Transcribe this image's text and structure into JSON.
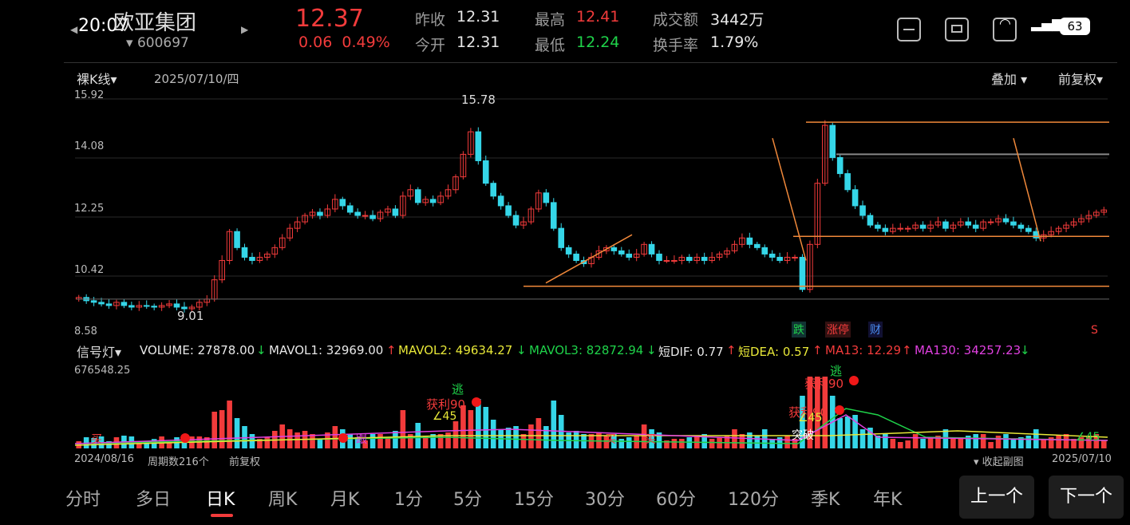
{
  "status": {
    "time": "20:07",
    "battery": "63"
  },
  "header": {
    "name": "欧亚集团",
    "code": "600697",
    "price": "12.37",
    "change": "0.06",
    "change_pct": "0.49%",
    "prev_close_label": "昨收",
    "prev_close": "12.31",
    "open_label": "今开",
    "open": "12.31",
    "high_label": "最高",
    "high": "12.41",
    "low_label": "最低",
    "low": "12.24",
    "amount_label": "成交额",
    "amount": "3442万",
    "turnover_label": "换手率",
    "turnover": "1.79%"
  },
  "header_icons": [
    "minimize-icon",
    "screen-icon",
    "edit-icon",
    "wifi-icon",
    "signal-icon"
  ],
  "chart": {
    "kline_dropdown": "裸K线",
    "date": "2025/07/10/四",
    "overlay_dropdown": "叠加",
    "adjust_dropdown": "前复权",
    "y_ticks": [
      "15.92",
      "14.08",
      "12.25",
      "10.42",
      "8.58"
    ],
    "high_mark": "15.78",
    "low_mark": "9.01",
    "event_fall": "跌",
    "event_limit": "涨停",
    "event_finance": "财",
    "event_s": "S"
  },
  "indicator": {
    "dropdown": "信号灯",
    "volume": "VOLUME: 27878.00",
    "mavol1": "MAVOL1: 32969.00",
    "mavol2": "MAVOL2: 49634.27",
    "mavol3": "MAVOL3: 82872.94",
    "dif": "短DIF: 0.77",
    "dea": "短DEA: 0.57",
    "ma13": "MA13: 12.29",
    "ma130": "MA130: 34257.23",
    "vol_max": "676548.25",
    "signals": {
      "escape": "逃",
      "profit": "获利90",
      "angle": "∠45",
      "buy": "买",
      "breakout": "突破",
      "follow": "跟"
    }
  },
  "footer": {
    "start_date": "2024/08/16",
    "period_count": "周期数216个",
    "adjust": "前复权",
    "collapse": "收起副图",
    "end_date": "2025/07/10"
  },
  "tabs": [
    "分时",
    "多日",
    "日K",
    "周K",
    "月K",
    "1分",
    "5分",
    "15分",
    "30分",
    "60分",
    "120分",
    "季K",
    "年K"
  ],
  "active_tab": "日K",
  "buttons": {
    "prev": "上一个",
    "next": "下一个"
  },
  "colors": {
    "up": "#f23b3b",
    "down": "#35d6e8",
    "orange_line": "#f0883a",
    "ma_green": "#1fd34a",
    "ma_yellow": "#e8e838",
    "ma_pink": "#e040e0"
  },
  "chart_data": {
    "type": "candlestick",
    "price_range": [
      8.58,
      15.92
    ],
    "series": [
      {
        "values": [
          9.65,
          9.55,
          9.5,
          9.45,
          9.4,
          9.5,
          9.4,
          9.35,
          9.4,
          9.38,
          9.35,
          9.4,
          9.45,
          9.35,
          9.3,
          9.35,
          9.5,
          9.6,
          10.2,
          10.8,
          11.7,
          11.2,
          10.9,
          10.8,
          10.9,
          11.0,
          11.2,
          11.5,
          11.8,
          12.0,
          12.2,
          12.3,
          12.2,
          12.4,
          12.7,
          12.5,
          12.3,
          12.2,
          12.2,
          12.1,
          12.3,
          12.4,
          12.2,
          12.8,
          13.0,
          12.6,
          12.7,
          12.6,
          12.8,
          13.0,
          13.4,
          14.1,
          14.8,
          13.9,
          13.2,
          12.8,
          12.5,
          12.2,
          11.9,
          12.0,
          12.4,
          12.9,
          12.6,
          11.8,
          11.2,
          11.0,
          10.8,
          10.7,
          10.9,
          11.1,
          11.2,
          11.1,
          11.0,
          10.9,
          11.0,
          11.3,
          11.0,
          10.8,
          10.8,
          10.8,
          10.9,
          10.8,
          10.9,
          10.8,
          10.9,
          11.0,
          11.1,
          11.3,
          11.5,
          11.3,
          11.2,
          11.0,
          10.9,
          10.8,
          10.9,
          10.9,
          9.9,
          11.3,
          13.2,
          15.0,
          14.0,
          13.5,
          13.0,
          12.5,
          12.2,
          11.9,
          11.8,
          11.7,
          11.8,
          11.8,
          11.8,
          11.9,
          11.8,
          11.9,
          12.0,
          11.8,
          11.9,
          12.0,
          11.9,
          11.8,
          12.0,
          12.0,
          12.1,
          12.0,
          11.9,
          11.8,
          11.7,
          11.5,
          11.6,
          11.7,
          11.8,
          11.9,
          12.0,
          12.1,
          12.2,
          12.3,
          12.37
        ]
      }
    ]
  }
}
